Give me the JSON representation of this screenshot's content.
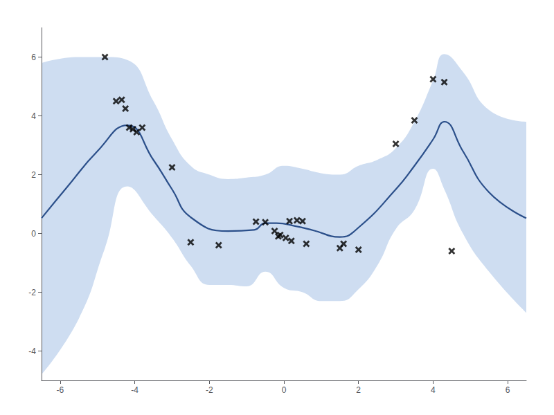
{
  "chart_data": {
    "type": "line",
    "xlim": [
      -6.5,
      6.5
    ],
    "ylim": [
      -5,
      7
    ],
    "xticks": [
      -6,
      -4,
      -2,
      0,
      2,
      4,
      6
    ],
    "yticks": [
      -4,
      -2,
      0,
      2,
      4,
      6
    ],
    "grid": false,
    "series": [
      {
        "type": "band",
        "color": "#aec6e8",
        "x": [
          -6.5,
          -5.5,
          -4.8,
          -4.2,
          -3.5,
          -3.0,
          -2.5,
          -2.0,
          -1.5,
          -1.0,
          -0.5,
          0.0,
          0.5,
          1.0,
          1.5,
          2.0,
          2.5,
          3.0,
          3.5,
          4.0,
          4.3,
          4.8,
          5.5,
          6.5
        ],
        "upper": [
          5.8,
          6.0,
          6.0,
          5.9,
          4.5,
          3.2,
          2.3,
          2.0,
          1.85,
          1.9,
          2.0,
          2.3,
          2.2,
          2.05,
          2.0,
          2.3,
          2.5,
          2.9,
          3.8,
          5.2,
          6.1,
          5.5,
          4.2,
          3.8
        ],
        "lower": [
          -4.8,
          -2.9,
          -0.5,
          1.6,
          0.6,
          -0.15,
          -1.1,
          -1.75,
          -1.75,
          -1.8,
          -1.3,
          -1.85,
          -2.0,
          -2.3,
          -2.3,
          -1.9,
          -1.1,
          0.15,
          0.8,
          2.2,
          1.5,
          0.0,
          -1.3,
          -2.7
        ]
      },
      {
        "type": "line",
        "color": "#2b4f8a",
        "x": [
          -6.5,
          -5.8,
          -5.0,
          -4.2,
          -3.5,
          -3.0,
          -2.5,
          -1.5,
          -0.8,
          -0.5,
          -0.2,
          0.3,
          0.8,
          1.5,
          2.0,
          3.0,
          3.5,
          4.0,
          4.3,
          4.8,
          5.5,
          6.5
        ],
        "values": [
          0.52,
          1.6,
          2.8,
          3.68,
          2.5,
          1.5,
          0.55,
          0.08,
          0.12,
          0.35,
          0.35,
          0.25,
          0.1,
          -0.12,
          0.2,
          1.5,
          2.3,
          3.2,
          3.8,
          2.8,
          1.4,
          0.52
        ]
      },
      {
        "type": "scatter",
        "color": "black",
        "marker": "x",
        "x": [
          -4.8,
          -4.5,
          -4.35,
          -4.25,
          -4.15,
          -4.05,
          -3.95,
          -3.8,
          -3.0,
          -2.5,
          -1.75,
          -0.75,
          -0.5,
          -0.25,
          -0.15,
          0.05,
          0.2,
          0.35,
          0.5,
          0.6,
          1.5,
          2.0,
          3.0,
          3.5,
          4.0,
          4.3,
          4.5,
          -0.1,
          0.15,
          1.6
        ],
        "values": [
          6.0,
          4.5,
          4.55,
          4.25,
          3.6,
          3.55,
          3.45,
          3.6,
          2.25,
          -0.3,
          -0.4,
          0.4,
          0.38,
          0.08,
          -0.1,
          -0.15,
          -0.25,
          0.45,
          0.42,
          -0.35,
          -0.5,
          -0.55,
          3.05,
          3.85,
          5.25,
          5.15,
          -0.6,
          -0.05,
          0.42,
          -0.35
        ]
      }
    ]
  }
}
